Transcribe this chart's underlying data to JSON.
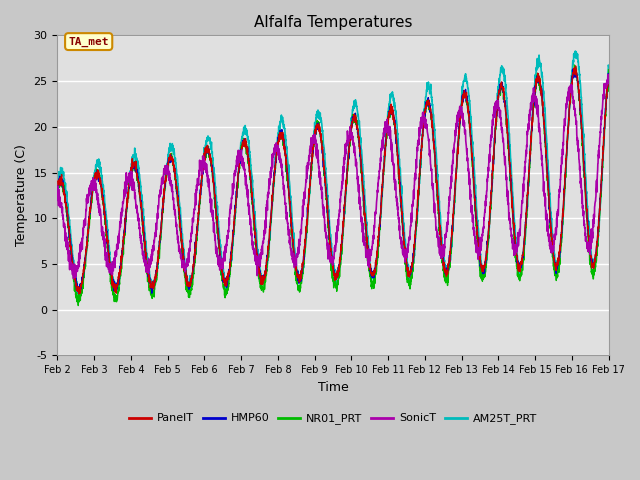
{
  "title": "Alfalfa Temperatures",
  "xlabel": "Time",
  "ylabel": "Temperature (C)",
  "ylim": [
    -5,
    30
  ],
  "annotation_text": "TA_met",
  "annotation_box_facecolor": "#ffffcc",
  "annotation_box_edgecolor": "#cc8800",
  "annotation_text_color": "#880000",
  "fig_facecolor": "#c8c8c8",
  "plot_bg_color": "#e0e0e0",
  "series": [
    {
      "label": "PanelT",
      "color": "#cc0000",
      "lw": 1.0,
      "zorder": 4
    },
    {
      "label": "HMP60",
      "color": "#0000cc",
      "lw": 1.0,
      "zorder": 3
    },
    {
      "label": "NR01_PRT",
      "color": "#00bb00",
      "lw": 1.0,
      "zorder": 2
    },
    {
      "label": "SonicT",
      "color": "#aa00aa",
      "lw": 1.2,
      "zorder": 5
    },
    {
      "label": "AM25T_PRT",
      "color": "#00bbbb",
      "lw": 1.2,
      "zorder": 1
    }
  ],
  "xtick_labels": [
    "Feb 2",
    "Feb 3",
    "Feb 4",
    "Feb 5",
    "Feb 6",
    "Feb 7",
    "Feb 8",
    "Feb 9",
    "Feb 10",
    "Feb 11",
    "Feb 12",
    "Feb 13",
    "Feb 14",
    "Feb 15",
    "Feb 16",
    "Feb 17"
  ],
  "ytick_labels": [
    "-5",
    "0",
    "5",
    "10",
    "15",
    "20",
    "25",
    "30"
  ],
  "ytick_vals": [
    -5,
    0,
    5,
    10,
    15,
    20,
    25,
    30
  ],
  "n_points": 2880,
  "days": 15
}
